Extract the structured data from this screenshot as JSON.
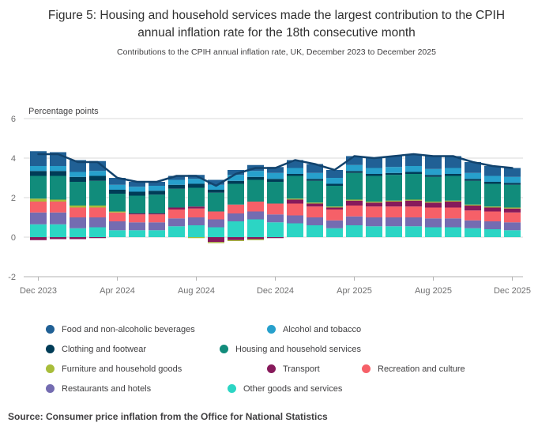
{
  "figure": {
    "title": "Figure 5: Housing and household services made the largest contribution to the CPIH annual inflation rate for the 18th consecutive month",
    "subtitle": "Contributions to the CPIH annual inflation rate, UK, December 2023 to December 2025",
    "source": "Source: Consumer price inflation from the Office for National Statistics"
  },
  "chart_data": {
    "type": "bar",
    "variant": "stacked-column-with-line",
    "title": "Contributions to the CPIH annual inflation rate, UK, December 2023 to December 2025",
    "xlabel": "",
    "ylabel": "Percentage points",
    "ylim": [
      -2,
      6
    ],
    "yticks": [
      6,
      4,
      2,
      0,
      -2
    ],
    "grid": true,
    "legend_position": "bottom",
    "categories": [
      "Dec 2023",
      "Jan 2024",
      "Feb 2024",
      "Mar 2024",
      "Apr 2024",
      "May 2024",
      "Jun 2024",
      "Jul 2024",
      "Aug 2024",
      "Sep 2024",
      "Oct 2024",
      "Nov 2024",
      "Dec 2024",
      "Jan 2025",
      "Feb 2025",
      "Mar 2025",
      "Apr 2025",
      "May 2025",
      "Jun 2025",
      "Jul 2025",
      "Aug 2025",
      "Sep 2025",
      "Oct 2025",
      "Nov 2025",
      "Dec 2025"
    ],
    "xtick_labels": [
      "Dec 2023",
      "Apr 2024",
      "Aug 2024",
      "Dec 2024",
      "Apr 2025",
      "Aug 2025",
      "Dec 2025"
    ],
    "xtick_indices": [
      0,
      4,
      8,
      12,
      16,
      20,
      24
    ],
    "series": [
      {
        "name": "Food and non-alcoholic beverages",
        "color": "#206095",
        "values": [
          0.75,
          0.7,
          0.6,
          0.5,
          0.35,
          0.25,
          0.2,
          0.2,
          0.2,
          0.25,
          0.25,
          0.3,
          0.3,
          0.4,
          0.45,
          0.4,
          0.45,
          0.5,
          0.55,
          0.6,
          0.65,
          0.6,
          0.55,
          0.5,
          0.45
        ]
      },
      {
        "name": "Alcohol and tobacco",
        "color": "#27A0CC",
        "values": [
          0.25,
          0.25,
          0.25,
          0.25,
          0.25,
          0.25,
          0.25,
          0.25,
          0.25,
          0.25,
          0.3,
          0.3,
          0.3,
          0.3,
          0.3,
          0.3,
          0.3,
          0.3,
          0.3,
          0.3,
          0.3,
          0.3,
          0.3,
          0.3,
          0.3
        ]
      },
      {
        "name": "Clothing and footwear",
        "color": "#003C57",
        "values": [
          0.25,
          0.25,
          0.25,
          0.25,
          0.2,
          0.2,
          0.2,
          0.2,
          0.2,
          0.15,
          0.15,
          0.15,
          0.15,
          0.1,
          0.1,
          0.1,
          0.1,
          0.1,
          0.1,
          0.1,
          0.1,
          0.1,
          0.1,
          0.1,
          0.1
        ]
      },
      {
        "name": "Housing and household services",
        "color": "#118C7B",
        "values": [
          1.15,
          1.2,
          1.2,
          1.25,
          0.9,
          0.9,
          0.95,
          0.95,
          0.95,
          0.95,
          1.05,
          1.1,
          1.1,
          1.15,
          1.1,
          1.05,
          1.35,
          1.3,
          1.3,
          1.3,
          1.25,
          1.25,
          1.2,
          1.15,
          1.15
        ]
      },
      {
        "name": "Furniture and household goods",
        "color": "#A8BD3A",
        "values": [
          0.15,
          0.1,
          0.1,
          0.1,
          0.05,
          0.0,
          0.0,
          0.0,
          -0.05,
          -0.05,
          -0.05,
          -0.05,
          0.0,
          0.05,
          0.05,
          0.05,
          0.05,
          0.05,
          0.05,
          0.05,
          0.05,
          0.05,
          0.05,
          0.05,
          0.05
        ]
      },
      {
        "name": "Transport",
        "color": "#871A5B",
        "values": [
          -0.15,
          -0.1,
          -0.1,
          -0.05,
          0.0,
          0.05,
          0.05,
          0.1,
          0.1,
          -0.25,
          -0.15,
          -0.1,
          -0.05,
          0.2,
          0.15,
          0.1,
          0.25,
          0.2,
          0.25,
          0.3,
          0.25,
          0.3,
          0.25,
          0.2,
          0.2
        ]
      },
      {
        "name": "Recreation and culture",
        "color": "#F66068",
        "values": [
          0.55,
          0.55,
          0.5,
          0.5,
          0.45,
          0.4,
          0.4,
          0.45,
          0.45,
          0.4,
          0.45,
          0.5,
          0.55,
          0.6,
          0.55,
          0.55,
          0.55,
          0.55,
          0.55,
          0.55,
          0.55,
          0.55,
          0.5,
          0.5,
          0.5
        ]
      },
      {
        "name": "Restaurants and hotels",
        "color": "#746CB1",
        "values": [
          0.6,
          0.6,
          0.55,
          0.5,
          0.45,
          0.4,
          0.4,
          0.4,
          0.4,
          0.4,
          0.4,
          0.4,
          0.4,
          0.4,
          0.4,
          0.4,
          0.45,
          0.45,
          0.45,
          0.45,
          0.45,
          0.45,
          0.4,
          0.4,
          0.4
        ]
      },
      {
        "name": "Other goods and services",
        "color": "#2CD5C4",
        "values": [
          0.65,
          0.65,
          0.45,
          0.5,
          0.35,
          0.35,
          0.35,
          0.55,
          0.6,
          0.5,
          0.8,
          0.9,
          0.75,
          0.7,
          0.6,
          0.45,
          0.6,
          0.55,
          0.55,
          0.55,
          0.5,
          0.5,
          0.45,
          0.4,
          0.35
        ]
      }
    ],
    "line": {
      "name": "CPIH annual inflation rate",
      "color": "#12436D",
      "values": [
        4.2,
        4.2,
        3.8,
        3.8,
        3.0,
        2.8,
        2.8,
        3.1,
        3.1,
        2.6,
        3.2,
        3.5,
        3.5,
        3.9,
        3.7,
        3.4,
        4.1,
        4.0,
        4.1,
        4.2,
        4.1,
        4.1,
        3.8,
        3.6,
        3.5
      ]
    }
  }
}
